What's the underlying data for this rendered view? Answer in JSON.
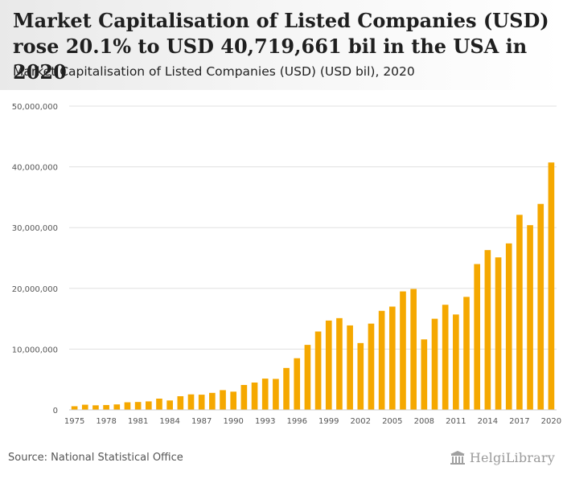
{
  "header": {
    "title": "Market Capitalisation of Listed Companies (USD) rose 20.1% to USD 40,719,661 bil in the USA in 2020",
    "subtitle": "Market Capitalisation of Listed Companies (USD) (USD bil), 2020"
  },
  "footer": {
    "source": "Source: National Statistical Office",
    "logo_text": "HelgiLibrary"
  },
  "colors": {
    "bar": "#f5a800",
    "grid": "#e0e0e0",
    "text": "#555555"
  },
  "chart_data": {
    "type": "bar",
    "categories": [
      "1975",
      "1976",
      "1977",
      "1978",
      "1979",
      "1980",
      "1981",
      "1982",
      "1983",
      "1984",
      "1985",
      "1986",
      "1987",
      "1988",
      "1989",
      "1990",
      "1991",
      "1992",
      "1993",
      "1994",
      "1995",
      "1996",
      "1997",
      "1998",
      "1999",
      "2000",
      "2001",
      "2002",
      "2003",
      "2004",
      "2005",
      "2006",
      "2007",
      "2008",
      "2009",
      "2010",
      "2011",
      "2012",
      "2013",
      "2014",
      "2015",
      "2016",
      "2017",
      "2018",
      "2019",
      "2020"
    ],
    "x_tick_labels": [
      "1975",
      "1978",
      "1981",
      "1984",
      "1987",
      "1990",
      "1993",
      "1996",
      "1999",
      "2002",
      "2005",
      "2008",
      "2011",
      "2014",
      "2017",
      "2020"
    ],
    "values": [
      600000,
      850000,
      750000,
      800000,
      900000,
      1250000,
      1300000,
      1400000,
      1850000,
      1550000,
      2250000,
      2550000,
      2500000,
      2800000,
      3250000,
      3000000,
      4100000,
      4500000,
      5150000,
      5100000,
      6900000,
      8500000,
      10700000,
      12900000,
      14700000,
      15100000,
      13900000,
      11000000,
      14200000,
      16300000,
      17000000,
      19500000,
      19900000,
      11600000,
      15000000,
      17300000,
      15700000,
      18600000,
      24000000,
      26300000,
      25100000,
      27400000,
      32100000,
      30400000,
      33900000,
      40719661
    ],
    "title": "Market Capitalisation of Listed Companies (USD) rose 20.1% to USD 40,719,661 bil in the USA in 2020",
    "subtitle": "Market Capitalisation of Listed Companies (USD) (USD bil), 2020",
    "xlabel": "",
    "ylabel": "",
    "ylim": [
      0,
      50000000
    ],
    "yticks": [
      0,
      10000000,
      20000000,
      30000000,
      40000000,
      50000000
    ],
    "ytick_labels": [
      "0",
      "10,000,000",
      "20,000,000",
      "30,000,000",
      "40,000,000",
      "50,000,000"
    ],
    "grid": true,
    "legend": "none"
  }
}
